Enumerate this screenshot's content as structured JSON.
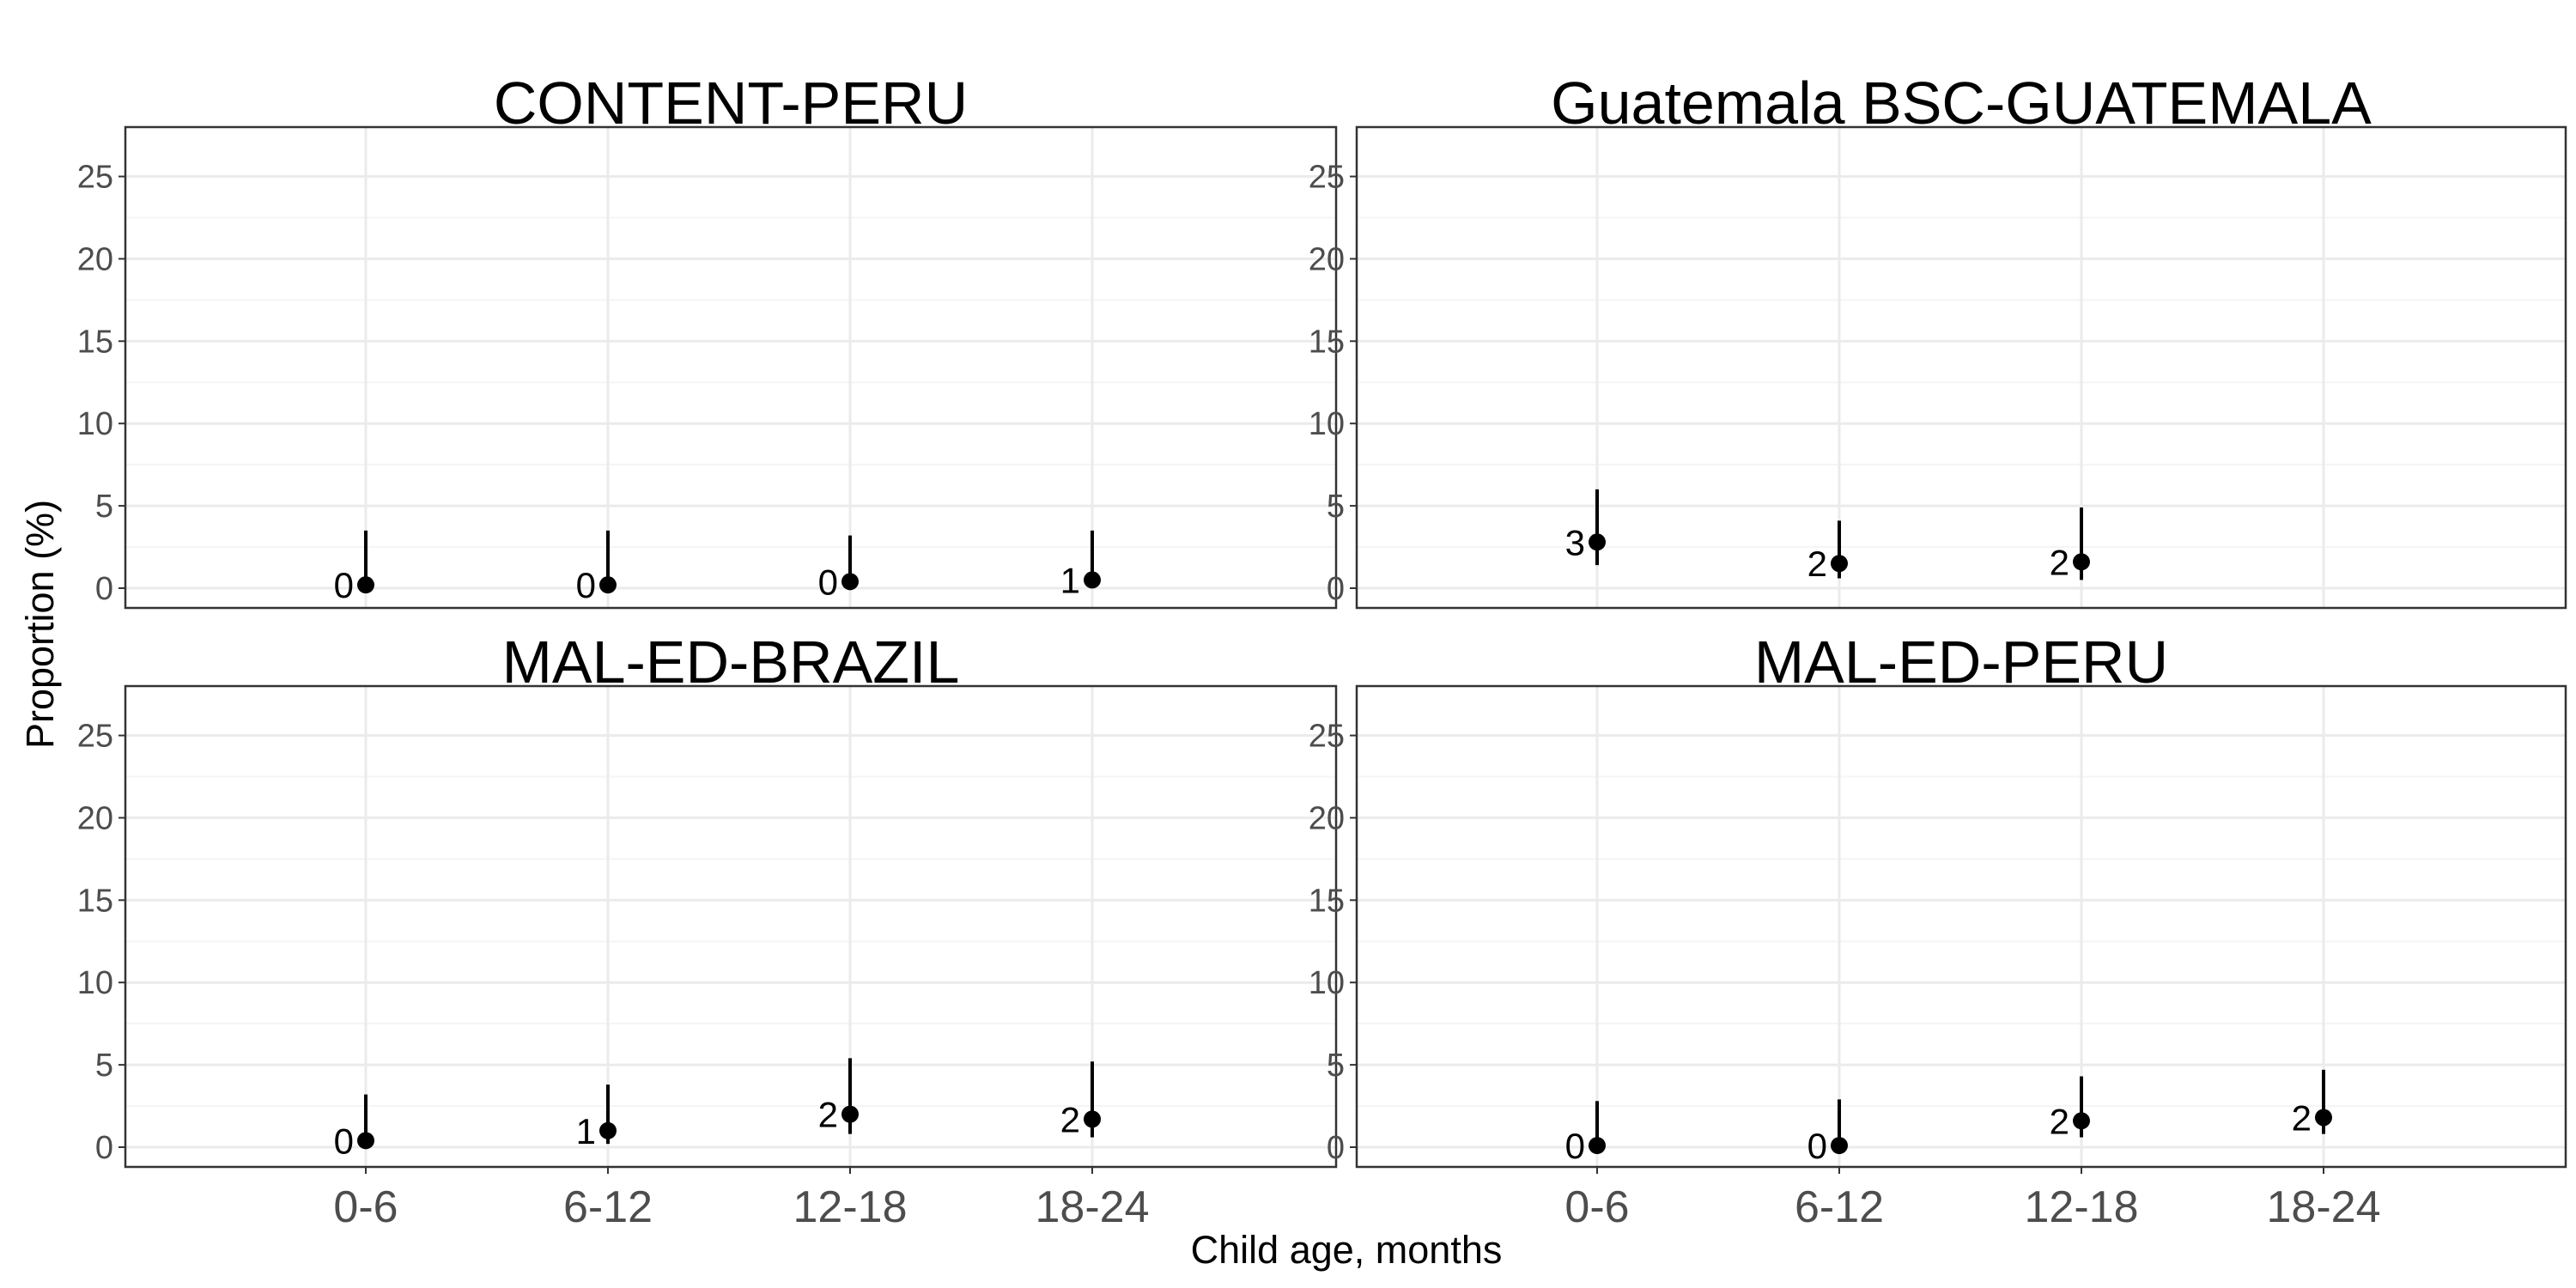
{
  "chart_data": {
    "type": "scatter",
    "xlabel": "Child age, months",
    "ylabel": "Proportion (%)",
    "categories": [
      "0-6",
      "6-12",
      "12-18",
      "18-24"
    ],
    "ylim": [
      -1.2,
      28
    ],
    "yticks": [
      0,
      5,
      10,
      15,
      20,
      25
    ],
    "grid": true,
    "panels": [
      {
        "title": "CONTENT-PERU",
        "points": [
          {
            "x": "0-6",
            "y": 0.2,
            "lower": 0.0,
            "upper": 3.5,
            "label": "0"
          },
          {
            "x": "6-12",
            "y": 0.2,
            "lower": 0.0,
            "upper": 3.5,
            "label": "0"
          },
          {
            "x": "12-18",
            "y": 0.4,
            "lower": 0.0,
            "upper": 3.2,
            "label": "0"
          },
          {
            "x": "18-24",
            "y": 0.5,
            "lower": 0.0,
            "upper": 3.5,
            "label": "1"
          }
        ]
      },
      {
        "title": "Guatemala BSC-GUATEMALA",
        "points": [
          {
            "x": "0-6",
            "y": 2.8,
            "lower": 1.4,
            "upper": 6.0,
            "label": "3"
          },
          {
            "x": "6-12",
            "y": 1.5,
            "lower": 0.6,
            "upper": 4.1,
            "label": "2"
          },
          {
            "x": "12-18",
            "y": 1.6,
            "lower": 0.5,
            "upper": 4.9,
            "label": "2"
          }
        ]
      },
      {
        "title": "MAL-ED-BRAZIL",
        "points": [
          {
            "x": "0-6",
            "y": 0.4,
            "lower": 0.0,
            "upper": 3.2,
            "label": "0"
          },
          {
            "x": "6-12",
            "y": 1.0,
            "lower": 0.2,
            "upper": 3.8,
            "label": "1"
          },
          {
            "x": "12-18",
            "y": 2.0,
            "lower": 0.8,
            "upper": 5.4,
            "label": "2"
          },
          {
            "x": "18-24",
            "y": 1.7,
            "lower": 0.6,
            "upper": 5.2,
            "label": "2"
          }
        ]
      },
      {
        "title": "MAL-ED-PERU",
        "points": [
          {
            "x": "0-6",
            "y": 0.1,
            "lower": 0.0,
            "upper": 2.8,
            "label": "0"
          },
          {
            "x": "6-12",
            "y": 0.1,
            "lower": 0.0,
            "upper": 2.9,
            "label": "0"
          },
          {
            "x": "12-18",
            "y": 1.6,
            "lower": 0.6,
            "upper": 4.3,
            "label": "2"
          },
          {
            "x": "18-24",
            "y": 1.8,
            "lower": 0.8,
            "upper": 4.7,
            "label": "2"
          }
        ]
      }
    ],
    "colors": {
      "point": "#000000",
      "panel_border": "#333333",
      "grid_major": "#ebebeb",
      "grid_minor": "#f5f5f5",
      "tick_text": "#4d4d4d"
    }
  }
}
